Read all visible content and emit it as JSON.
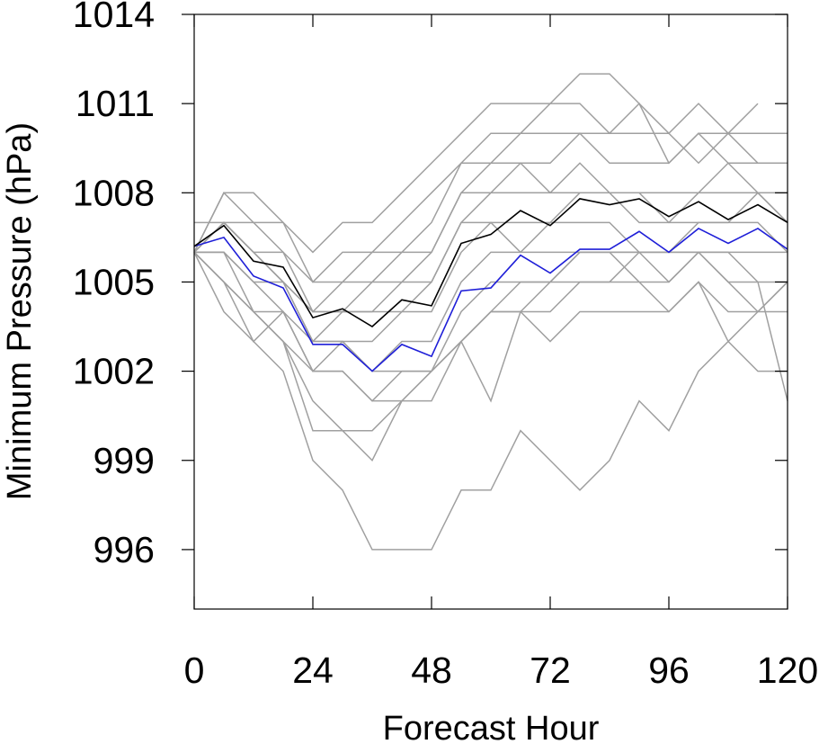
{
  "chart_data": {
    "type": "line",
    "xlabel": "Forecast Hour",
    "ylabel": "Minimum Pressure (hPa)",
    "xlim": [
      0,
      120
    ],
    "ylim": [
      994,
      1014
    ],
    "xticks": [
      0,
      24,
      48,
      72,
      96,
      120
    ],
    "yticks": [
      996,
      999,
      1002,
      1005,
      1008,
      1011,
      1014
    ],
    "x": [
      0,
      6,
      12,
      18,
      24,
      30,
      36,
      42,
      48,
      54,
      60,
      66,
      72,
      78,
      84,
      90,
      96,
      102,
      108,
      114,
      120
    ],
    "grid": false,
    "legend": "none",
    "colors": {
      "member": "#a0a0a0",
      "mean": "#000000",
      "highlight": "#1f1fd8"
    },
    "series": [
      {
        "role": "member",
        "values": [
          1006,
          1008,
          1008,
          1007,
          1006,
          1007,
          1007,
          1008,
          1009,
          1010,
          1011,
          1011,
          1011,
          1012,
          1012,
          1011,
          1010,
          1011,
          1010,
          1011,
          null
        ]
      },
      {
        "role": "member",
        "values": [
          1006,
          1008,
          1007,
          1007,
          1005,
          1006,
          1006,
          1007,
          1008,
          1009,
          1010,
          1010,
          1011,
          1011,
          1010,
          1011,
          1009,
          1010,
          1010,
          1010,
          1010
        ]
      },
      {
        "role": "member",
        "values": [
          1006,
          1007,
          1007,
          1006,
          1005,
          1005,
          1006,
          1006,
          1007,
          1009,
          1009,
          1010,
          1010,
          1010,
          1010,
          1010,
          1010,
          1009,
          1010,
          1009,
          1009
        ]
      },
      {
        "role": "member",
        "values": [
          1007,
          1007,
          1006,
          1006,
          1004,
          1005,
          1005,
          1006,
          1006,
          1008,
          1009,
          1009,
          1009,
          1010,
          1009,
          1009,
          1009,
          1010,
          1009,
          1009,
          1009
        ]
      },
      {
        "role": "member",
        "values": [
          1006,
          1007,
          1006,
          1005,
          1004,
          1004,
          1005,
          1005,
          1006,
          1008,
          1008,
          1009,
          1008,
          1009,
          1008,
          1008,
          1008,
          1008,
          1009,
          1008,
          1008
        ]
      },
      {
        "role": "member",
        "values": [
          1006,
          1007,
          1006,
          1005,
          1004,
          1004,
          1004,
          1005,
          1005,
          1007,
          1008,
          1008,
          1008,
          1008,
          1008,
          1008,
          1007,
          1008,
          1008,
          1008,
          1007
        ]
      },
      {
        "role": "member",
        "values": [
          1006,
          1007,
          1006,
          1005,
          1003,
          1004,
          1004,
          1004,
          1005,
          1007,
          1007,
          1007,
          1007,
          1008,
          1008,
          1007,
          1007,
          1007,
          1007,
          1008,
          1007
        ]
      },
      {
        "role": "member",
        "values": [
          1006,
          1006,
          1005,
          1005,
          1003,
          1003,
          1003,
          1004,
          1004,
          1006,
          1007,
          1006,
          1007,
          1007,
          1007,
          1006,
          1006,
          1007,
          1007,
          1007,
          1006
        ]
      },
      {
        "role": "member",
        "values": [
          1006,
          1006,
          1005,
          1004,
          1003,
          1003,
          1002,
          1003,
          1003,
          1005,
          1006,
          1006,
          1006,
          1006,
          1006,
          1006,
          1006,
          1006,
          1006,
          1006,
          1006
        ]
      },
      {
        "role": "member",
        "values": [
          1006,
          1006,
          1004,
          1004,
          1002,
          1003,
          1002,
          1002,
          1002,
          1004,
          1005,
          1005,
          1005,
          1006,
          1006,
          1005,
          1005,
          1006,
          1005,
          1005,
          1005
        ]
      },
      {
        "role": "member",
        "values": [
          1006,
          1005,
          1004,
          1003,
          1002,
          1002,
          1001,
          1002,
          1002,
          1003,
          1004,
          1004,
          1004,
          1005,
          1005,
          1005,
          1004,
          1005,
          1004,
          1004,
          1004
        ]
      },
      {
        "role": "member",
        "values": [
          1006,
          1005,
          1003,
          1004,
          1002,
          1002,
          1001,
          1001,
          1002,
          1003,
          1001,
          1004,
          1003,
          1004,
          1004,
          1004,
          1004,
          1005,
          1003,
          1002,
          1002
        ]
      },
      {
        "role": "member",
        "values": [
          1006,
          1005,
          1004,
          1003,
          1001,
          1000,
          999,
          1001,
          1001,
          1003,
          1004,
          1004,
          1005,
          1005,
          1005,
          1006,
          1005,
          1006,
          1006,
          1005,
          1001
        ]
      },
      {
        "role": "member",
        "values": [
          1006,
          1005,
          1004,
          1003,
          1000,
          1000,
          1000,
          1001,
          1002,
          1003,
          1004,
          1005,
          1005,
          1006,
          1006,
          1006,
          1006,
          1006,
          1005,
          1004,
          1005
        ]
      },
      {
        "role": "member",
        "values": [
          1006,
          1004,
          1003,
          1002,
          999,
          998,
          996,
          996,
          996,
          998,
          998,
          1000,
          999,
          998,
          999,
          1001,
          1000,
          1002,
          1003,
          1004,
          1005
        ]
      },
      {
        "role": "mean",
        "values": [
          1006.2,
          1006.9,
          1005.7,
          1005.5,
          1003.8,
          1004.1,
          1003.5,
          1004.4,
          1004.2,
          1006.3,
          1006.6,
          1007.4,
          1006.9,
          1007.8,
          1007.6,
          1007.8,
          1007.2,
          1007.7,
          1007.1,
          1007.6,
          1007.0
        ]
      },
      {
        "role": "highlight",
        "values": [
          1006.2,
          1006.5,
          1005.2,
          1004.8,
          1002.9,
          1002.9,
          1002.0,
          1002.9,
          1002.5,
          1004.7,
          1004.8,
          1005.9,
          1005.3,
          1006.1,
          1006.1,
          1006.7,
          1006.0,
          1006.8,
          1006.3,
          1006.8,
          1006.1
        ]
      }
    ]
  }
}
